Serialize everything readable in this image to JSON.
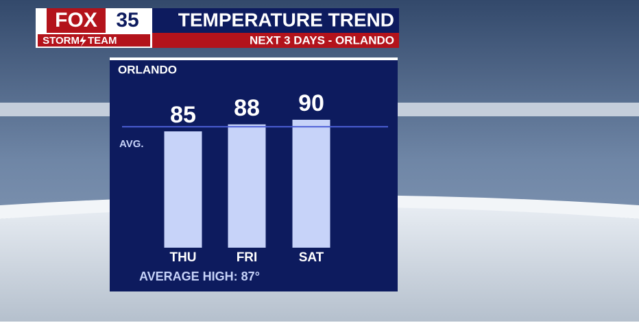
{
  "brand": {
    "network": "FOX",
    "channel": "35",
    "team_left": "STORM",
    "team_right": "TEAM"
  },
  "chart_data": {
    "type": "bar",
    "title": "TEMPERATURE TREND",
    "subtitle": "NEXT 3 DAYS - ORLANDO",
    "location": "ORLANDO",
    "categories": [
      "THU",
      "FRI",
      "SAT"
    ],
    "values": [
      85,
      88,
      90
    ],
    "color": "#c7d3f9",
    "ylim": [
      35,
      95
    ],
    "average": {
      "value": 87,
      "label": "AVERAGE HIGH: 87°"
    },
    "average_line_label": "AVG.",
    "average_color": "#4d5fd6"
  }
}
